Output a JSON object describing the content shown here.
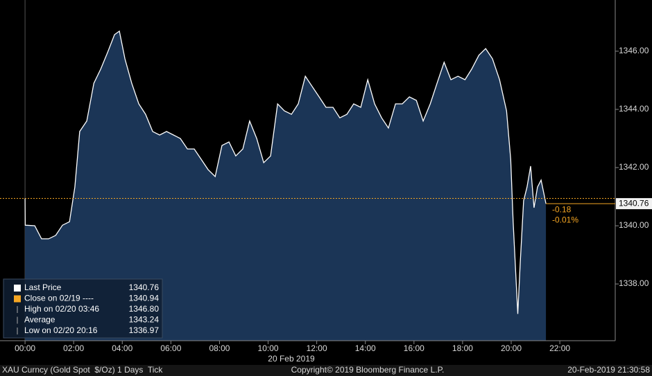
{
  "chart_data": {
    "type": "area",
    "x": [
      0,
      0.01,
      0.4,
      0.68,
      0.97,
      1.26,
      1.54,
      1.83,
      2.05,
      2.25,
      2.54,
      2.83,
      3.11,
      3.4,
      3.68,
      3.88,
      4.11,
      4.39,
      4.68,
      4.96,
      5.25,
      5.54,
      5.82,
      6.11,
      6.39,
      6.68,
      6.96,
      7.25,
      7.53,
      7.82,
      8.1,
      8.39,
      8.67,
      8.96,
      9.24,
      9.53,
      9.82,
      10.1,
      10.39,
      10.67,
      10.96,
      11.24,
      11.53,
      11.81,
      12.1,
      12.38,
      12.67,
      12.95,
      13.24,
      13.52,
      13.81,
      14.1,
      14.38,
      14.67,
      14.95,
      15.24,
      15.52,
      15.81,
      16.1,
      16.38,
      16.67,
      16.95,
      17.24,
      17.52,
      17.81,
      18.1,
      18.37,
      18.67,
      18.95,
      19.23,
      19.52,
      19.81,
      19.98,
      20.08,
      20.27,
      20.37,
      20.51,
      20.65,
      20.8,
      20.94,
      21.08,
      21.23,
      21.43
    ],
    "series": [
      {
        "name": "Last Price",
        "color": "#ffffff",
        "values": [
          1340.94,
          1340.02,
          1340.0,
          1339.55,
          1339.55,
          1339.67,
          1340.02,
          1340.14,
          1341.33,
          1343.24,
          1343.6,
          1344.9,
          1345.38,
          1345.97,
          1346.57,
          1346.69,
          1345.74,
          1344.9,
          1344.19,
          1343.83,
          1343.24,
          1343.12,
          1343.24,
          1343.12,
          1343.0,
          1342.64,
          1342.64,
          1342.28,
          1341.93,
          1341.69,
          1342.76,
          1342.88,
          1342.4,
          1342.64,
          1343.6,
          1343.0,
          1342.17,
          1342.4,
          1344.19,
          1343.95,
          1343.83,
          1344.19,
          1345.14,
          1344.79,
          1344.43,
          1344.07,
          1344.07,
          1343.71,
          1343.83,
          1344.19,
          1344.07,
          1345.02,
          1344.19,
          1343.71,
          1343.36,
          1344.19,
          1344.19,
          1344.43,
          1344.31,
          1343.6,
          1344.19,
          1344.9,
          1345.62,
          1345.02,
          1345.14,
          1345.02,
          1345.38,
          1345.86,
          1346.09,
          1345.74,
          1345.02,
          1343.95,
          1342.28,
          1340.14,
          1336.97,
          1338.71,
          1340.86,
          1341.33,
          1342.05,
          1340.62,
          1341.33,
          1341.57,
          1340.76
        ]
      }
    ],
    "fill_color": "#1b3556",
    "xlim": [
      -1.03,
      24.28
    ],
    "ylim": [
      1336.05,
      1347.76
    ],
    "xticks": [
      {
        "value": 0,
        "label": "00:00"
      },
      {
        "value": 2,
        "label": "02:00"
      },
      {
        "value": 4,
        "label": "04:00"
      },
      {
        "value": 6,
        "label": "06:00"
      },
      {
        "value": 8,
        "label": "08:00"
      },
      {
        "value": 10,
        "label": "10:00"
      },
      {
        "value": 12,
        "label": "12:00"
      },
      {
        "value": 14,
        "label": "14:00"
      },
      {
        "value": 16,
        "label": "16:00"
      },
      {
        "value": 18,
        "label": "18:00"
      },
      {
        "value": 20,
        "label": "20:00"
      },
      {
        "value": 22,
        "label": "22:00"
      }
    ],
    "yticks": [
      {
        "value": 1338,
        "label": "1338.00"
      },
      {
        "value": 1340,
        "label": "1340.00"
      },
      {
        "value": 1342,
        "label": "1342.00"
      },
      {
        "value": 1344,
        "label": "1344.00"
      },
      {
        "value": 1346,
        "label": "1346.00"
      }
    ],
    "x_label": "20 Feb 2019",
    "reference_line": {
      "value": 1340.94,
      "color": "#f5a623"
    },
    "last_value_label": "1340.76",
    "change_labels": [
      "-0.18",
      "-0.01%"
    ],
    "legend": [
      {
        "label": "Last Price",
        "value": "1340.76"
      },
      {
        "label": "Close on 02/19 ----",
        "value": "1340.94"
      },
      {
        "label": "High on 02/20 03:46",
        "value": "1346.80"
      },
      {
        "label": "Average",
        "value": "1343.24"
      },
      {
        "label": "Low on 02/20 20:16",
        "value": "1336.97"
      }
    ]
  },
  "footer": {
    "left": "XAU Curncy (Gold Spot  $/Oz) 1 Days  Tick",
    "center": "Copyright© 2019 Bloomberg Finance L.P.",
    "right": "20-Feb-2019 21:30:58"
  }
}
